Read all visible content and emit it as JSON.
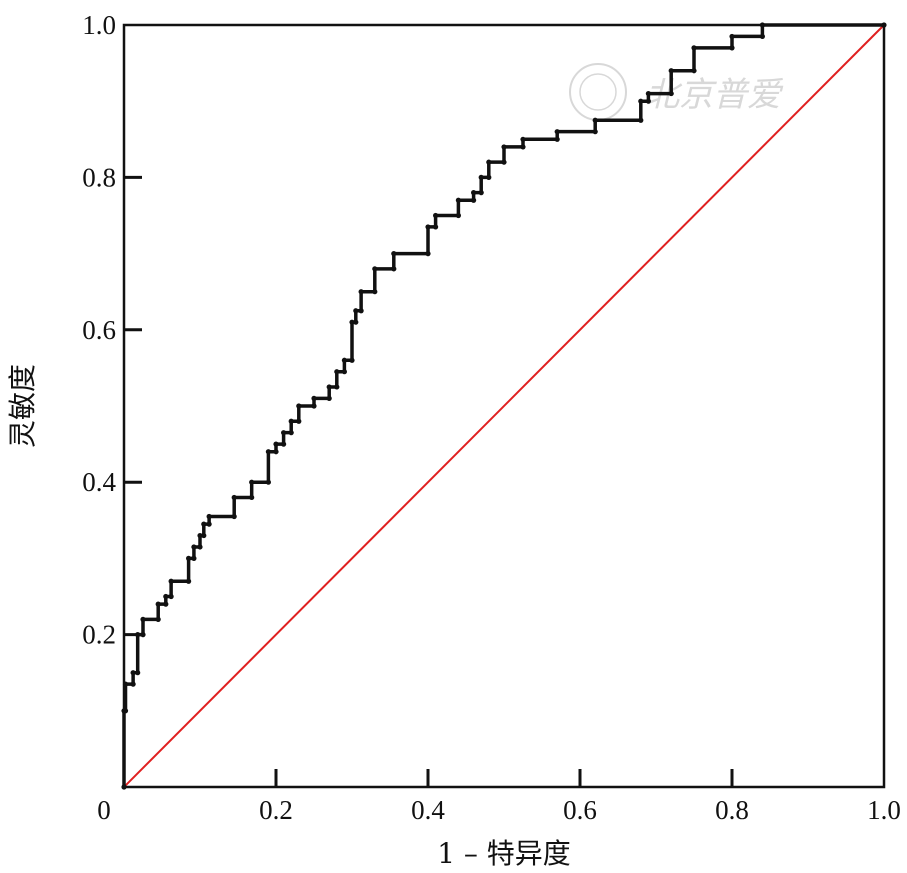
{
  "watermark": "北京普爱",
  "chart_data": {
    "type": "line",
    "xlabel": "1 – 特异度",
    "ylabel": "灵敏度",
    "xlim": [
      0,
      1
    ],
    "ylim": [
      0,
      1
    ],
    "grid": false,
    "x_ticks": [
      0,
      0.2,
      0.4,
      0.6,
      0.8,
      1.0
    ],
    "y_ticks": [
      0.2,
      0.4,
      0.6,
      0.8,
      1.0
    ],
    "x_tick_labels": [
      "0",
      "0.2",
      "0.4",
      "0.6",
      "0.8",
      "1.0"
    ],
    "y_tick_labels": [
      "0.2",
      "0.4",
      "0.6",
      "0.8",
      "1.0"
    ],
    "origin_label": "0",
    "colors": {
      "roc": "#111111",
      "reference": "#e02020"
    },
    "series": [
      {
        "style": "step",
        "x": [
          0.0,
          0.0,
          0.002,
          0.002,
          0.012,
          0.012,
          0.018,
          0.018,
          0.025,
          0.025,
          0.045,
          0.045,
          0.055,
          0.055,
          0.062,
          0.062,
          0.085,
          0.085,
          0.092,
          0.092,
          0.1,
          0.1,
          0.105,
          0.105,
          0.112,
          0.112,
          0.145,
          0.145,
          0.168,
          0.168,
          0.19,
          0.19,
          0.2,
          0.2,
          0.21,
          0.21,
          0.22,
          0.22,
          0.23,
          0.23,
          0.25,
          0.25,
          0.27,
          0.27,
          0.28,
          0.28,
          0.29,
          0.29,
          0.3,
          0.3,
          0.305,
          0.305,
          0.312,
          0.312,
          0.33,
          0.33,
          0.355,
          0.355,
          0.4,
          0.4,
          0.41,
          0.41,
          0.44,
          0.44,
          0.46,
          0.46,
          0.47,
          0.47,
          0.48,
          0.48,
          0.5,
          0.5,
          0.525,
          0.525,
          0.57,
          0.57,
          0.62,
          0.62,
          0.68,
          0.68,
          0.69,
          0.69,
          0.72,
          0.72,
          0.75,
          0.75,
          0.8,
          0.8,
          0.84,
          0.84,
          1.0
        ],
        "y": [
          0.0,
          0.1,
          0.1,
          0.135,
          0.135,
          0.15,
          0.15,
          0.2,
          0.2,
          0.22,
          0.22,
          0.24,
          0.24,
          0.25,
          0.25,
          0.27,
          0.27,
          0.3,
          0.3,
          0.315,
          0.315,
          0.33,
          0.33,
          0.345,
          0.345,
          0.355,
          0.355,
          0.38,
          0.38,
          0.4,
          0.4,
          0.44,
          0.44,
          0.45,
          0.45,
          0.465,
          0.465,
          0.48,
          0.48,
          0.5,
          0.5,
          0.51,
          0.51,
          0.525,
          0.525,
          0.545,
          0.545,
          0.56,
          0.56,
          0.61,
          0.61,
          0.625,
          0.625,
          0.65,
          0.65,
          0.68,
          0.68,
          0.7,
          0.7,
          0.735,
          0.735,
          0.75,
          0.75,
          0.77,
          0.77,
          0.78,
          0.78,
          0.8,
          0.8,
          0.82,
          0.82,
          0.84,
          0.84,
          0.85,
          0.85,
          0.86,
          0.86,
          0.875,
          0.875,
          0.9,
          0.9,
          0.91,
          0.91,
          0.94,
          0.94,
          0.97,
          0.97,
          0.985,
          0.985,
          1.0,
          1.0
        ]
      },
      {
        "style": "line",
        "x": [
          0,
          1
        ],
        "y": [
          0,
          1
        ]
      }
    ]
  }
}
